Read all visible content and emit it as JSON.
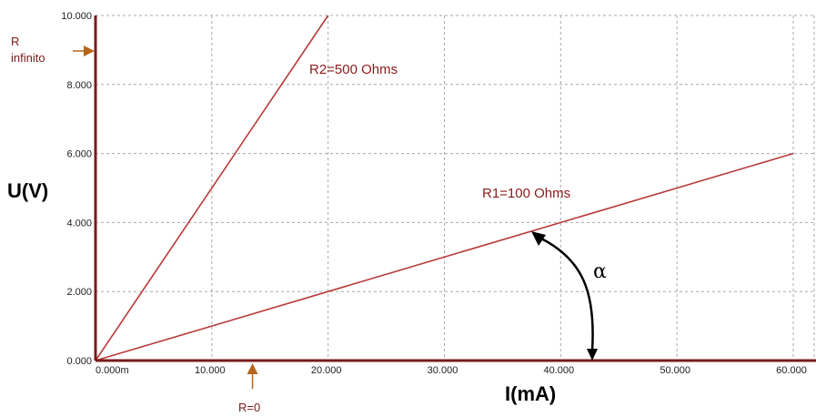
{
  "chart_data": {
    "type": "line",
    "xlabel": "I(mA)",
    "ylabel": "U(V)",
    "xlim": [
      0,
      60
    ],
    "ylim": [
      0,
      10
    ],
    "x_ticks": [
      0,
      10,
      20,
      30,
      40,
      50,
      60
    ],
    "x_tick_labels": [
      "0.000m",
      "10.000",
      "20.000",
      "30.000",
      "40.000",
      "50.000",
      "60.000"
    ],
    "y_ticks": [
      0,
      2,
      4,
      6,
      8,
      10
    ],
    "y_tick_labels": [
      "0.000",
      "2.000",
      "4.000",
      "6.000",
      "8.000",
      "10.000"
    ],
    "grid": true,
    "series": [
      {
        "name": "R1=100 Ohms",
        "x": [
          0,
          60
        ],
        "y": [
          0,
          6
        ],
        "color": "#b83a3a"
      },
      {
        "name": "R2=500 Ohms",
        "x": [
          0,
          20
        ],
        "y": [
          0,
          10
        ],
        "color": "#b83a3a"
      }
    ],
    "annotations": {
      "r_infinito": {
        "text_line1": "R",
        "text_line2": "infinito",
        "y": 9.0
      },
      "r_zero": {
        "text": "R=0",
        "x": 13.5
      },
      "angle": {
        "symbol": "α"
      }
    }
  },
  "colors": {
    "axis": "#7a1a1a",
    "grid": "#aaaaaa",
    "series": "#b83a3a",
    "arrow": "#b5651d"
  }
}
